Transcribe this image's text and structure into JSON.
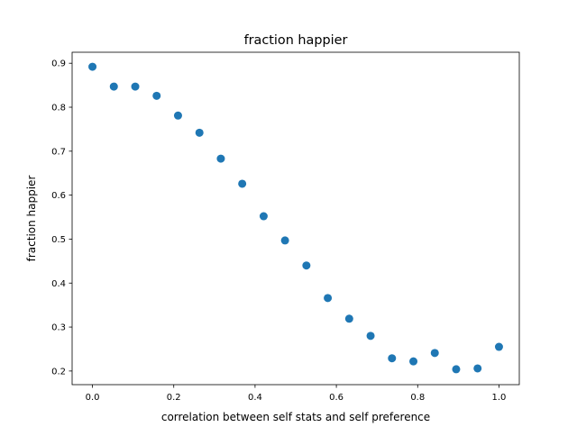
{
  "chart_data": {
    "type": "scatter",
    "title": "fraction happier",
    "xlabel": "correlation between self stats and self preference",
    "ylabel": "fraction happier",
    "xlim": [
      -0.05,
      1.05
    ],
    "ylim": [
      0.169,
      0.925
    ],
    "xticks": [
      0.0,
      0.2,
      0.4,
      0.6,
      0.8,
      1.0
    ],
    "xtick_labels": [
      "0.0",
      "0.2",
      "0.4",
      "0.6",
      "0.8",
      "1.0"
    ],
    "yticks": [
      0.2,
      0.3,
      0.4,
      0.5,
      0.6,
      0.7,
      0.8,
      0.9
    ],
    "ytick_labels": [
      "0.2",
      "0.3",
      "0.4",
      "0.5",
      "0.6",
      "0.7",
      "0.8",
      "0.9"
    ],
    "grid": false,
    "color": "#1f77b4",
    "x": [
      0.0,
      0.0526,
      0.1053,
      0.1579,
      0.2105,
      0.2632,
      0.3158,
      0.3684,
      0.4211,
      0.4737,
      0.5263,
      0.5789,
      0.6316,
      0.6842,
      0.7368,
      0.7895,
      0.8421,
      0.8947,
      0.9474,
      1.0
    ],
    "y": [
      0.892,
      0.847,
      0.847,
      0.826,
      0.781,
      0.742,
      0.683,
      0.626,
      0.552,
      0.497,
      0.44,
      0.366,
      0.319,
      0.28,
      0.229,
      0.222,
      0.241,
      0.204,
      0.206,
      0.255
    ]
  }
}
